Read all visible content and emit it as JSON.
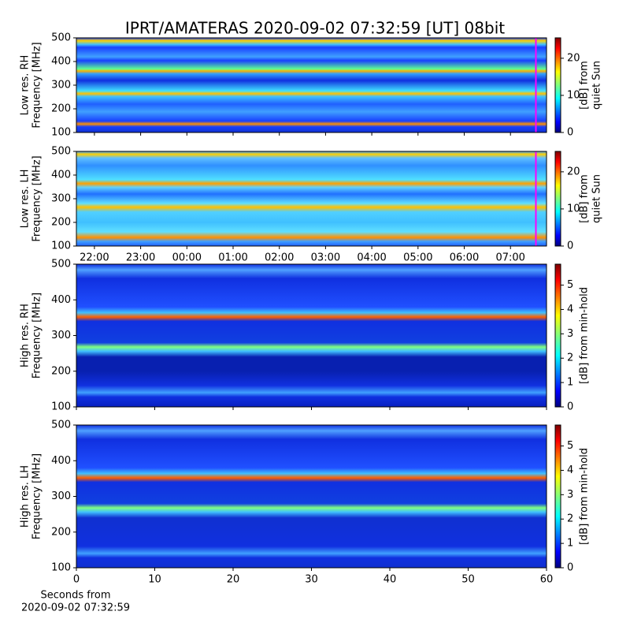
{
  "title": "IPRT/AMATERAS 2020-09-02 07:32:59 [UT]   08bit",
  "chart_data": [
    {
      "type": "heatmap",
      "ylabel": [
        "Low res. RH",
        "Frequency [MHz]"
      ],
      "xlim": [
        21.61,
        31.78
      ],
      "xticks": [
        22,
        23,
        24,
        25,
        26,
        27,
        28,
        29,
        30,
        31
      ],
      "xtick_labels": false,
      "ylim": [
        100,
        500
      ],
      "yticks": [
        100,
        200,
        300,
        400,
        500
      ],
      "marker_x": 31.55,
      "marker_color": "#ff00ff",
      "colorbar_label": [
        "[dB] from",
        "quiet Sun"
      ],
      "clim": [
        0,
        25.5
      ],
      "cticks": [
        0,
        10,
        20
      ]
    },
    {
      "type": "heatmap",
      "ylabel": [
        "Low res. LH",
        "Frequency [MHz]"
      ],
      "xlim": [
        21.61,
        31.78
      ],
      "xticks": [
        {
          "value": 22,
          "label": "22:00"
        },
        {
          "value": 23,
          "label": "23:00"
        },
        {
          "value": 24,
          "label": "00:00"
        },
        {
          "value": 25,
          "label": "01:00"
        },
        {
          "value": 26,
          "label": "02:00"
        },
        {
          "value": 27,
          "label": "03:00"
        },
        {
          "value": 28,
          "label": "04:00"
        },
        {
          "value": 29,
          "label": "05:00"
        },
        {
          "value": 30,
          "label": "06:00"
        },
        {
          "value": 31,
          "label": "07:00"
        }
      ],
      "xtick_labels": true,
      "ylim": [
        100,
        500
      ],
      "yticks": [
        100,
        200,
        300,
        400,
        500
      ],
      "marker_x": 31.55,
      "marker_color": "#ff00ff",
      "colorbar_label": [
        "[dB] from",
        "quiet Sun"
      ],
      "clim": [
        0,
        25.5
      ],
      "cticks": [
        0,
        10,
        20
      ]
    },
    {
      "type": "heatmap",
      "ylabel": [
        "High res. RH",
        "Frequency [MHz]"
      ],
      "xlim": [
        0,
        60
      ],
      "xticks": [
        0,
        10,
        20,
        30,
        40,
        50,
        60
      ],
      "xtick_labels": false,
      "ylim": [
        100,
        500
      ],
      "yticks": [
        100,
        200,
        300,
        400,
        500
      ],
      "colorbar_label": [
        "[dB] from min-hold"
      ],
      "clim": [
        0,
        5.86
      ],
      "cticks": [
        0,
        1,
        2,
        3,
        4,
        5
      ]
    },
    {
      "type": "heatmap",
      "ylabel": [
        "High res. LH",
        "Frequency [MHz]"
      ],
      "xlim": [
        0,
        60
      ],
      "xticks": [
        0,
        10,
        20,
        30,
        40,
        50,
        60
      ],
      "xtick_labels": true,
      "xlabel": [
        "Seconds from",
        "2020-09-02 07:32:59"
      ],
      "ylim": [
        100,
        500
      ],
      "yticks": [
        100,
        200,
        300,
        400,
        500
      ],
      "colorbar_label": [
        "[dB] from min-hold"
      ],
      "clim": [
        0,
        5.86
      ],
      "cticks": [
        0,
        1,
        2,
        3,
        4,
        5
      ]
    }
  ]
}
